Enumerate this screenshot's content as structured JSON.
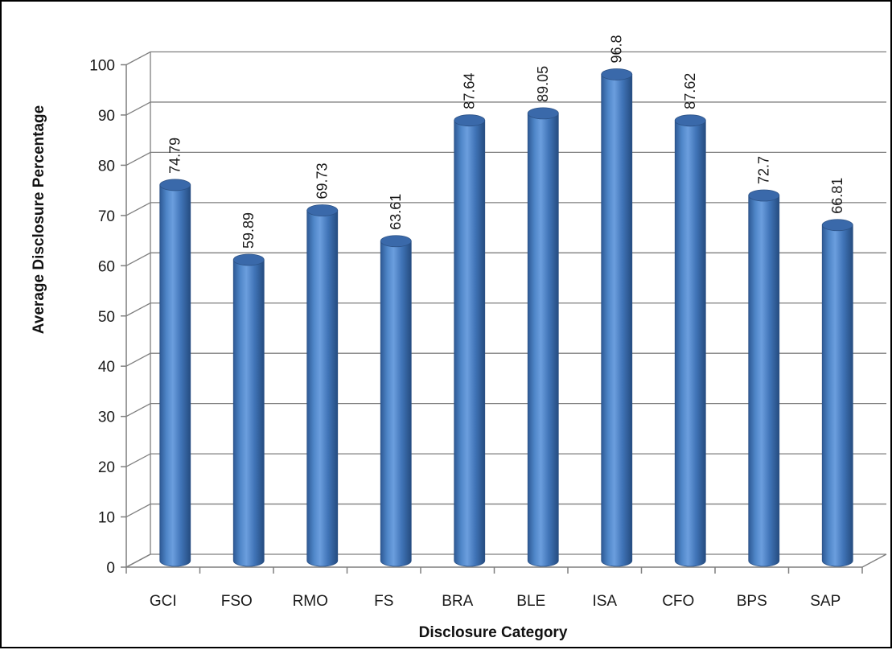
{
  "chart_data": {
    "type": "bar",
    "style": "3d-cylinder",
    "title": "",
    "xlabel": "Disclosure Category",
    "ylabel": "Average Disclosure Percentage",
    "categories": [
      "GCI",
      "FSO",
      "RMO",
      "FS",
      "BRA",
      "BLE",
      "ISA",
      "CFO",
      "BPS",
      "SAP"
    ],
    "values": [
      74.79,
      59.89,
      69.73,
      63.61,
      87.64,
      89.05,
      96.8,
      87.62,
      72.7,
      66.81
    ],
    "value_labels": [
      "74.79",
      "59.89",
      "69.73",
      "63.61",
      "87.64",
      "89.05",
      "96.8",
      "87.62",
      "72.7",
      "66.81"
    ],
    "ylim": [
      0,
      100
    ],
    "yticks": [
      0,
      10,
      20,
      30,
      40,
      50,
      60,
      70,
      80,
      90,
      100
    ],
    "grid": true,
    "legend": "none",
    "colors": {
      "bar_body": "#4a7ec0",
      "bar_top": "#3a69aa",
      "bar_edge": "#2c5286",
      "grid": "#7f7f7f",
      "wall": "#ffffff"
    }
  }
}
